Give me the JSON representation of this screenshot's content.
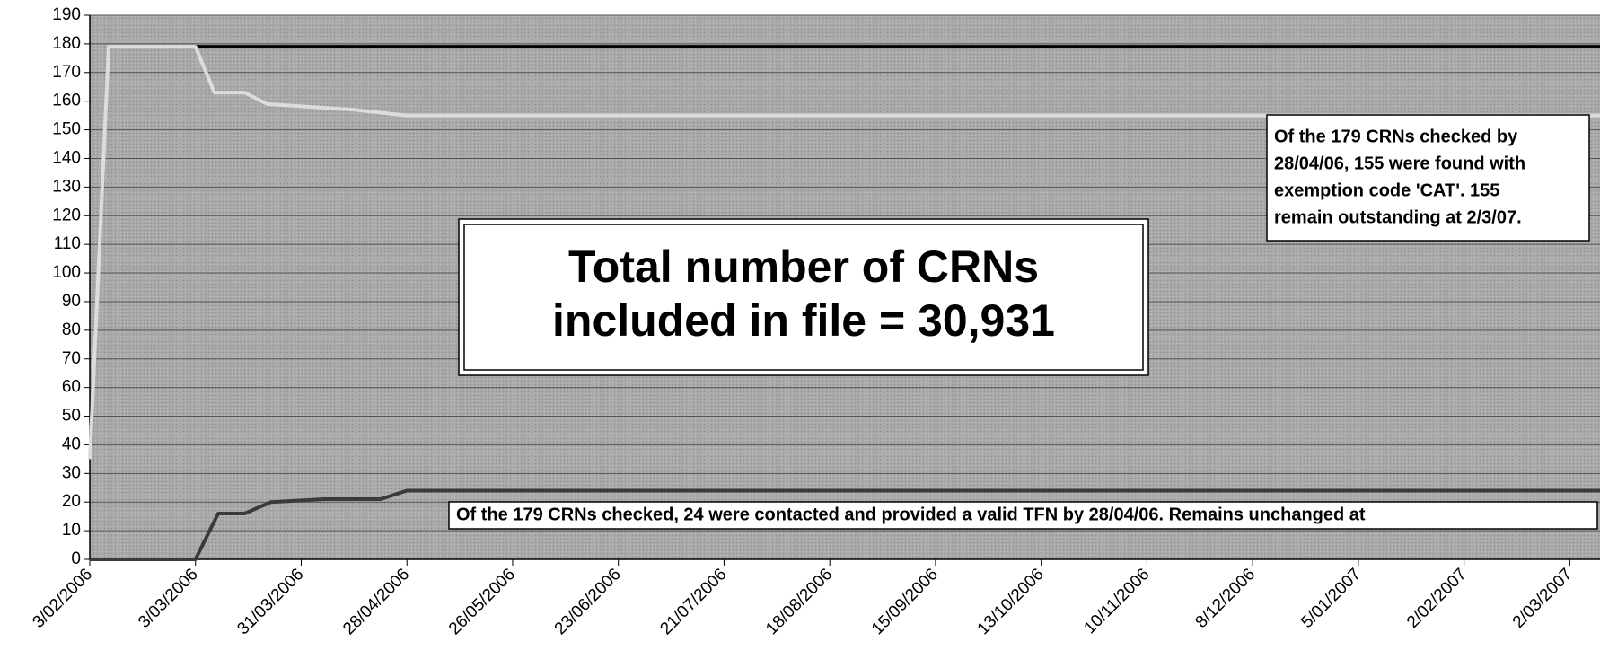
{
  "chart_data": {
    "type": "line",
    "ylim": [
      0,
      190
    ],
    "yticks": [
      0,
      10,
      20,
      30,
      40,
      50,
      60,
      70,
      80,
      90,
      100,
      110,
      120,
      130,
      140,
      150,
      160,
      170,
      180,
      190
    ],
    "xlim": [
      "3/02/2006",
      "10/03/2007"
    ],
    "xticks": [
      "3/02/2006",
      "3/03/2006",
      "31/03/2006",
      "28/04/2006",
      "26/05/2006",
      "23/06/2006",
      "21/07/2006",
      "18/08/2006",
      "15/09/2006",
      "13/10/2006",
      "10/11/2006",
      "8/12/2006",
      "5/01/2007",
      "2/02/2007",
      "2/03/2007"
    ],
    "grid": true,
    "series": [
      {
        "color": "#000000",
        "x": [
          "3/03/2006",
          "10/03/2007"
        ],
        "values": [
          179,
          179
        ]
      },
      {
        "color": "#dcdcdc",
        "x": [
          "3/02/2006",
          "8/02/2006",
          "3/03/2006",
          "8/03/2006",
          "16/03/2006",
          "22/03/2006",
          "14/04/2006",
          "28/04/2006",
          "10/03/2007"
        ],
        "values": [
          35,
          179,
          179,
          163,
          163,
          159,
          157,
          155,
          155
        ]
      },
      {
        "color": "#3a3a3a",
        "x": [
          "3/02/2006",
          "3/03/2006",
          "9/03/2006",
          "16/03/2006",
          "23/03/2006",
          "6/04/2006",
          "21/04/2006",
          "28/04/2006",
          "10/03/2007"
        ],
        "values": [
          0,
          0,
          16,
          16,
          20,
          21,
          21,
          24,
          24
        ]
      }
    ],
    "annotations": [
      {
        "lines": [
          "Total number of CRNs",
          "included in file = 30,931"
        ]
      },
      {
        "lines": [
          "Of the 179 CRNs checked  by",
          "28/04/06, 155 were found with",
          "exemption code 'CAT'. 155",
          "remain outstanding at 2/3/07."
        ]
      },
      {
        "lines": [
          "Of the 179 CRNs checked, 24 were contacted and provided a valid TFN by 28/04/06. Remains unchanged at"
        ]
      }
    ]
  }
}
